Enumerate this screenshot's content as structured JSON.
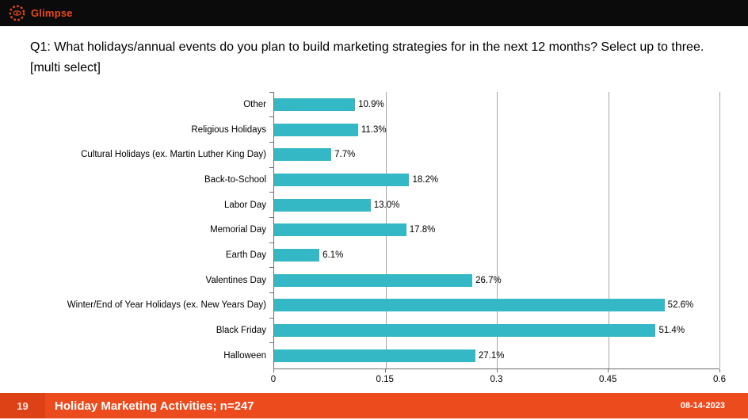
{
  "header": {
    "logo_text": "Glimpse",
    "logo_color": "#e8491d",
    "bar_color": "#0b0b0b"
  },
  "title": "Q1: What holidays/annual events do you plan to build marketing strategies for in the next 12 months? Select up to three. [multi select]",
  "chart_data": {
    "type": "bar",
    "orientation": "horizontal",
    "categories": [
      "Other",
      "Religious Holidays",
      "Cultural Holidays (ex. Martin Luther King Day)",
      "Back-to-School",
      "Labor Day",
      "Memorial Day",
      "Earth Day",
      "Valentines Day",
      "Winter/End of Year Holidays (ex. New Years Day)",
      "Black Friday",
      "Halloween"
    ],
    "values": [
      0.109,
      0.113,
      0.077,
      0.182,
      0.13,
      0.178,
      0.061,
      0.267,
      0.526,
      0.514,
      0.271
    ],
    "value_labels": [
      "10.9%",
      "11.3%",
      "7.7%",
      "18.2%",
      "13.0%",
      "17.8%",
      "6.1%",
      "26.7%",
      "52.6%",
      "51.4%",
      "27.1%"
    ],
    "xlim": [
      0,
      0.6
    ],
    "x_ticks": [
      0,
      0.15,
      0.3,
      0.45,
      0.6
    ],
    "x_tick_labels": [
      "0",
      "0.15",
      "0.3",
      "0.45",
      "0.6"
    ],
    "bar_color": "#35b8c6",
    "grid": true,
    "legend": false,
    "title": "",
    "xlabel": "",
    "ylabel": ""
  },
  "footer": {
    "page_number": "19",
    "title": "Holiday Marketing Activities; n=247",
    "date": "08-14-2023",
    "bg_color": "#ec4b1d"
  }
}
